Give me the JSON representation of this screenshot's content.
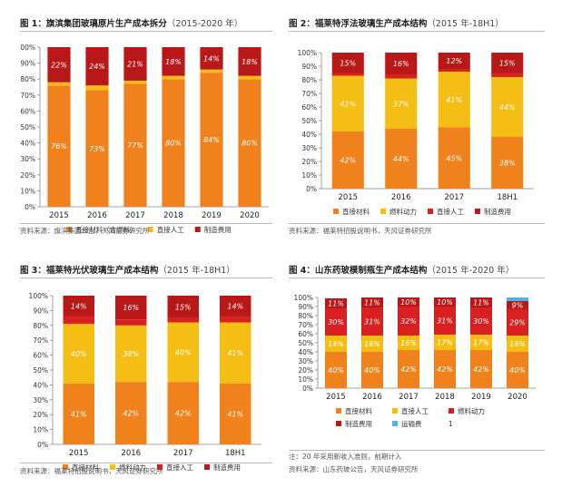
{
  "colors": {
    "material": "#F0821E",
    "labor": "#F5BE14",
    "fuel": "#D82020",
    "mfg": "#B81818",
    "transport": "#4FB3E6",
    "label_text": "#FFFFFF",
    "axis": "#888888"
  },
  "panels": [
    {
      "title_prefix": "图 1：旗滨集团玻璃原片生产成本拆分",
      "title_suffix": "（2015-2020 年）",
      "source": "资料来源：旗滨集团公告，天风证券研究所",
      "note": ""
    },
    {
      "title_prefix": "图 2：福莱特浮法玻璃生产成本结构",
      "title_suffix": "（2015 年-18H1）",
      "source": "资料来源：福莱特招股说明书，天风证券研究所",
      "note": ""
    },
    {
      "title_prefix": "图 3：福莱特光伏玻璃生产成本结构",
      "title_suffix": "（2015 年-18H1）",
      "source": "资料来源：福莱特招股说明书，天风证券研究所",
      "note": ""
    },
    {
      "title_prefix": "图 4：山东药玻模制瓶生产成本结构",
      "title_suffix": "（2015 年-2020 年）",
      "source": "资料来源：山东药玻公告，天风证券研究所",
      "note": "注：20 年采用新收入准则，前期计入"
    }
  ],
  "chart_data": [
    {
      "type": "bar",
      "stacked": true,
      "percent": true,
      "categories": [
        "2015",
        "2016",
        "2017",
        "2018",
        "2019",
        "2020"
      ],
      "ylim": [
        0,
        100
      ],
      "yticks": [
        "0%",
        "10%",
        "20%",
        "30%",
        "40%",
        "50%",
        "60%",
        "70%",
        "80%",
        "90%",
        "100%"
      ],
      "series": [
        {
          "name": "直接材料（含燃料）",
          "color_key": "material",
          "values": [
            76,
            73,
            77,
            80,
            84,
            80
          ],
          "labels": [
            "76%",
            "73%",
            "77%",
            "80%",
            "84%",
            "80%"
          ]
        },
        {
          "name": "直接人工",
          "color_key": "labor",
          "values": [
            2,
            3,
            2,
            2,
            2,
            2
          ],
          "labels": [
            "",
            "",
            "",
            "",
            "",
            ""
          ]
        },
        {
          "name": "制造费用",
          "color_key": "mfg",
          "values": [
            22,
            24,
            21,
            18,
            14,
            18
          ],
          "labels": [
            "22%",
            "24%",
            "21%",
            "18%",
            "14%",
            "18%"
          ]
        }
      ]
    },
    {
      "type": "bar",
      "stacked": true,
      "percent": true,
      "categories": [
        "2015",
        "2016",
        "2017",
        "18H1"
      ],
      "ylim": [
        0,
        100
      ],
      "yticks": [
        "0%",
        "10%",
        "20%",
        "30%",
        "40%",
        "50%",
        "60%",
        "70%",
        "80%",
        "90%",
        "100%"
      ],
      "series": [
        {
          "name": "直接材料",
          "color_key": "material",
          "values": [
            42,
            44,
            45,
            38
          ],
          "labels": [
            "42%",
            "44%",
            "45%",
            "38%"
          ]
        },
        {
          "name": "燃料动力",
          "color_key": "labor",
          "values": [
            41,
            37,
            41,
            44
          ],
          "labels": [
            "41%",
            "37%",
            "41%",
            "44%"
          ]
        },
        {
          "name": "直接人工",
          "color_key": "fuel",
          "values": [
            2,
            3,
            2,
            3
          ],
          "labels": [
            "",
            "",
            "",
            ""
          ]
        },
        {
          "name": "制造费用",
          "color_key": "mfg",
          "values": [
            15,
            16,
            12,
            15
          ],
          "labels": [
            "15%",
            "16%",
            "12%",
            "15%"
          ]
        }
      ]
    },
    {
      "type": "bar",
      "stacked": true,
      "percent": true,
      "categories": [
        "2015",
        "2016",
        "2017",
        "18H1"
      ],
      "ylim": [
        0,
        100
      ],
      "yticks": [
        "0%",
        "10%",
        "20%",
        "30%",
        "40%",
        "50%",
        "60%",
        "70%",
        "80%",
        "90%",
        "100%"
      ],
      "series": [
        {
          "name": "直接材料",
          "color_key": "material",
          "values": [
            41,
            42,
            42,
            41
          ],
          "labels": [
            "41%",
            "42%",
            "42%",
            "41%"
          ]
        },
        {
          "name": "燃料动力",
          "color_key": "labor",
          "values": [
            40,
            38,
            40,
            41
          ],
          "labels": [
            "40%",
            "38%",
            "40%",
            "41%"
          ]
        },
        {
          "name": "直接人工",
          "color_key": "fuel",
          "values": [
            5,
            4,
            3,
            4
          ],
          "labels": [
            "",
            "",
            "",
            ""
          ]
        },
        {
          "name": "制造费用",
          "color_key": "mfg",
          "values": [
            14,
            16,
            15,
            14
          ],
          "labels": [
            "14%",
            "16%",
            "15%",
            "14%"
          ]
        }
      ]
    },
    {
      "type": "bar",
      "stacked": true,
      "percent": true,
      "categories": [
        "2015",
        "2016",
        "2017",
        "2018",
        "2019",
        "2020"
      ],
      "ylim": [
        0,
        100
      ],
      "yticks": [
        "0%",
        "10%",
        "20%",
        "30%",
        "40%",
        "50%",
        "60%",
        "70%",
        "80%",
        "90%",
        "100%"
      ],
      "series": [
        {
          "name": "直接材料",
          "color_key": "material",
          "values": [
            40,
            40,
            42,
            42,
            42,
            40
          ],
          "labels": [
            "40%",
            "40%",
            "42%",
            "42%",
            "42%",
            "40%"
          ]
        },
        {
          "name": "直接人工",
          "color_key": "labor",
          "values": [
            18,
            18,
            16,
            17,
            17,
            18
          ],
          "labels": [
            "18%",
            "18%",
            "16%",
            "17%",
            "17%",
            "18%"
          ]
        },
        {
          "name": "燃料动力",
          "color_key": "fuel",
          "values": [
            30,
            31,
            32,
            31,
            30,
            29
          ],
          "labels": [
            "30%",
            "31%",
            "32%",
            "31%",
            "30%",
            "29%"
          ]
        },
        {
          "name": "制造费用",
          "color_key": "mfg",
          "values": [
            11,
            11,
            10,
            10,
            11,
            9
          ],
          "labels": [
            "11%",
            "11%",
            "10%",
            "10%",
            "11%",
            "9%"
          ]
        },
        {
          "name": "运输费",
          "color_key": "transport",
          "values": [
            0,
            0,
            0,
            0,
            0,
            4
          ],
          "labels": [
            "",
            "",
            "",
            "",
            "",
            ""
          ]
        }
      ]
    }
  ],
  "legend_extra_4": "1"
}
